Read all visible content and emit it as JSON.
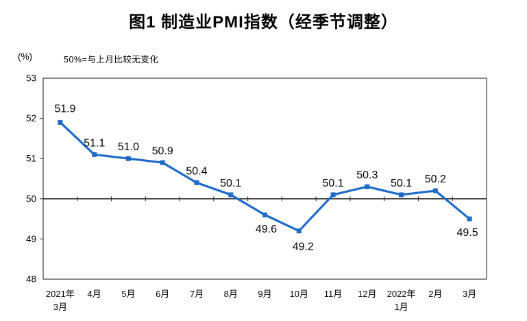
{
  "colors": {
    "line_blue": "#1E6AC8",
    "axis_gray": "#4A4A4A",
    "reference_black": "#333333",
    "text_black": "#000000"
  },
  "chart_data": {
    "type": "line",
    "title": "图1 制造业PMI指数（经季节调整）",
    "ylabel": "(%)",
    "annotation": "50%=与上月比较无变化",
    "categories": [
      "2021年\n3月",
      "4月",
      "5月",
      "6月",
      "7月",
      "8月",
      "9月",
      "10月",
      "11月",
      "12月",
      "2022年\n1月",
      "2月",
      "3月"
    ],
    "series": [
      {
        "name": "制造业PMI指数",
        "values": [
          51.9,
          51.1,
          51.0,
          50.9,
          50.4,
          50.1,
          49.6,
          49.2,
          50.1,
          50.3,
          50.1,
          50.2,
          49.5
        ]
      }
    ],
    "data_labels": [
      "51.9",
      "51.1",
      "51.0",
      "50.9",
      "50.4",
      "50.1",
      "49.6",
      "49.2",
      "50.1",
      "50.3",
      "50.1",
      "50.2",
      "49.5"
    ],
    "ylim": [
      48,
      53
    ],
    "yticks": [
      48,
      49,
      50,
      51,
      52,
      53
    ],
    "reference_line": 50,
    "grid": false,
    "legend": "none",
    "marker": "square"
  }
}
